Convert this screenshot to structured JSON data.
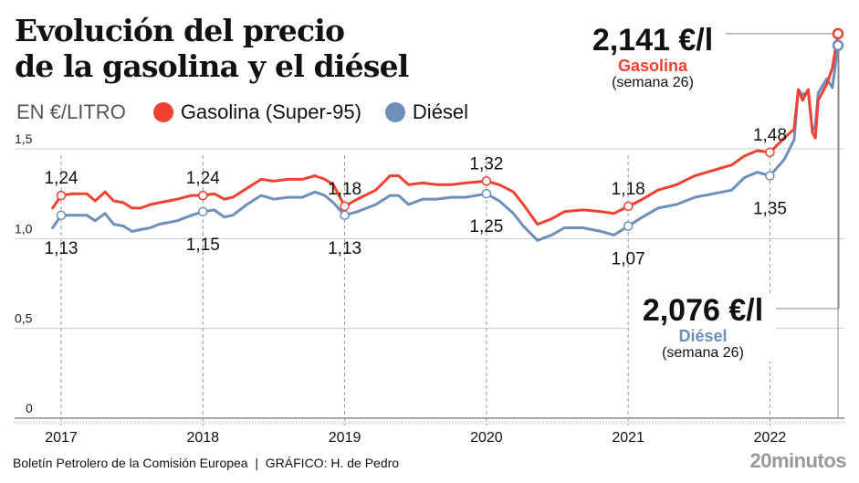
{
  "title_lines": [
    "Evolución del precio",
    "de la gasolina y el diésel"
  ],
  "unit_label": "EN €/LITRO",
  "legend": [
    {
      "name": "Gasolina (Super-95)",
      "color": "#f04131"
    },
    {
      "name": "Diésel",
      "color": "#6f8fbb"
    }
  ],
  "annotations": {
    "gasolina": {
      "value": "2,141 €/l",
      "series": "Gasolina",
      "period": "(semana 26)"
    },
    "diesel": {
      "value": "2,076 €/l",
      "series": "Diésel",
      "period": "(semana 26)"
    }
  },
  "footer": "Boletín Petrolero de la Comisión Europea  |  GRÁFICO: H. de Pedro",
  "brand": "20minutos",
  "chart_data": {
    "type": "line",
    "title": "Evolución del precio de la gasolina y el diésel",
    "ylabel": "EN €/LITRO",
    "xlabel": "",
    "ylim": [
      0,
      1.5
    ],
    "yticks": [
      {
        "value": 0,
        "label": "0"
      },
      {
        "value": 0.5,
        "label": "0,5"
      },
      {
        "value": 1.0,
        "label": "1,0"
      },
      {
        "value": 1.5,
        "label": "1,5"
      }
    ],
    "xlim": [
      2016.94,
      2022.48
    ],
    "xticks": [
      {
        "value": 2017,
        "label": "2017"
      },
      {
        "value": 2018,
        "label": "2018"
      },
      {
        "value": 2019,
        "label": "2019"
      },
      {
        "value": 2020,
        "label": "2020"
      },
      {
        "value": 2021,
        "label": "2021"
      },
      {
        "value": 2022,
        "label": "2022"
      }
    ],
    "grid": true,
    "legend_position": "top-left",
    "series": [
      {
        "name": "Gasolina (Super-95)",
        "color": "#f04131",
        "x": [
          2016.94,
          2017.0,
          2017.08,
          2017.18,
          2017.24,
          2017.31,
          2017.37,
          2017.44,
          2017.5,
          2017.56,
          2017.63,
          2017.69,
          2017.76,
          2017.82,
          2017.92,
          2018.0,
          2018.08,
          2018.15,
          2018.21,
          2018.31,
          2018.41,
          2018.5,
          2018.6,
          2018.7,
          2018.79,
          2018.86,
          2018.92,
          2019.0,
          2019.09,
          2019.22,
          2019.32,
          2019.38,
          2019.45,
          2019.55,
          2019.65,
          2019.75,
          2019.85,
          2020.0,
          2020.09,
          2020.19,
          2020.26,
          2020.36,
          2020.46,
          2020.55,
          2020.68,
          2020.81,
          2020.9,
          2021.0,
          2021.08,
          2021.21,
          2021.34,
          2021.47,
          2021.6,
          2021.73,
          2021.82,
          2021.91,
          2022.0,
          2022.1,
          2022.17,
          2022.2,
          2022.23,
          2022.27,
          2022.3,
          2022.32,
          2022.34,
          2022.4,
          2022.44,
          2022.48
        ],
        "values": [
          1.17,
          1.24,
          1.25,
          1.25,
          1.21,
          1.26,
          1.21,
          1.2,
          1.17,
          1.17,
          1.19,
          1.2,
          1.21,
          1.22,
          1.24,
          1.24,
          1.25,
          1.22,
          1.23,
          1.28,
          1.33,
          1.32,
          1.33,
          1.33,
          1.35,
          1.33,
          1.3,
          1.18,
          1.22,
          1.27,
          1.35,
          1.35,
          1.3,
          1.31,
          1.3,
          1.3,
          1.31,
          1.32,
          1.3,
          1.26,
          1.19,
          1.08,
          1.11,
          1.15,
          1.16,
          1.15,
          1.14,
          1.18,
          1.21,
          1.27,
          1.3,
          1.35,
          1.38,
          1.41,
          1.46,
          1.49,
          1.48,
          1.56,
          1.61,
          1.83,
          1.77,
          1.83,
          1.59,
          1.56,
          1.77,
          1.86,
          1.95,
          2.141
        ]
      },
      {
        "name": "Diésel",
        "color": "#6f8fbb",
        "x": [
          2016.94,
          2017.0,
          2017.08,
          2017.18,
          2017.24,
          2017.31,
          2017.37,
          2017.44,
          2017.5,
          2017.56,
          2017.63,
          2017.69,
          2017.76,
          2017.82,
          2017.92,
          2018.0,
          2018.08,
          2018.15,
          2018.21,
          2018.31,
          2018.41,
          2018.5,
          2018.6,
          2018.7,
          2018.79,
          2018.86,
          2018.92,
          2019.0,
          2019.09,
          2019.22,
          2019.32,
          2019.38,
          2019.45,
          2019.55,
          2019.65,
          2019.75,
          2019.85,
          2020.0,
          2020.09,
          2020.19,
          2020.26,
          2020.36,
          2020.46,
          2020.55,
          2020.68,
          2020.81,
          2020.9,
          2021.0,
          2021.08,
          2021.21,
          2021.34,
          2021.47,
          2021.6,
          2021.73,
          2021.82,
          2021.91,
          2022.0,
          2022.1,
          2022.17,
          2022.2,
          2022.23,
          2022.27,
          2022.3,
          2022.32,
          2022.34,
          2022.4,
          2022.44,
          2022.48
        ],
        "values": [
          1.06,
          1.13,
          1.13,
          1.13,
          1.1,
          1.14,
          1.08,
          1.07,
          1.04,
          1.05,
          1.06,
          1.08,
          1.09,
          1.1,
          1.13,
          1.15,
          1.16,
          1.12,
          1.13,
          1.19,
          1.24,
          1.22,
          1.23,
          1.23,
          1.26,
          1.24,
          1.2,
          1.13,
          1.15,
          1.19,
          1.24,
          1.24,
          1.19,
          1.22,
          1.22,
          1.23,
          1.23,
          1.25,
          1.21,
          1.14,
          1.07,
          0.99,
          1.02,
          1.06,
          1.06,
          1.04,
          1.02,
          1.07,
          1.11,
          1.17,
          1.19,
          1.23,
          1.25,
          1.27,
          1.34,
          1.37,
          1.35,
          1.44,
          1.55,
          1.83,
          1.8,
          1.82,
          1.6,
          1.63,
          1.81,
          1.89,
          1.84,
          2.076
        ]
      }
    ],
    "point_labels": [
      {
        "series": 0,
        "x": 2017.0,
        "value": 1.24,
        "label": "1,24",
        "position": "above"
      },
      {
        "series": 1,
        "x": 2017.0,
        "value": 1.13,
        "label": "1,13",
        "position": "below"
      },
      {
        "series": 0,
        "x": 2018.0,
        "value": 1.24,
        "label": "1,24",
        "position": "above"
      },
      {
        "series": 1,
        "x": 2018.0,
        "value": 1.15,
        "label": "1,15",
        "position": "below"
      },
      {
        "series": 0,
        "x": 2019.0,
        "value": 1.18,
        "label": "1,18",
        "position": "above"
      },
      {
        "series": 1,
        "x": 2019.0,
        "value": 1.13,
        "label": "1,13",
        "position": "below"
      },
      {
        "series": 0,
        "x": 2020.0,
        "value": 1.32,
        "label": "1,32",
        "position": "above"
      },
      {
        "series": 1,
        "x": 2020.0,
        "value": 1.25,
        "label": "1,25",
        "position": "below"
      },
      {
        "series": 0,
        "x": 2021.0,
        "value": 1.18,
        "label": "1,18",
        "position": "above"
      },
      {
        "series": 1,
        "x": 2021.0,
        "value": 1.07,
        "label": "1,07",
        "position": "below"
      },
      {
        "series": 0,
        "x": 2022.0,
        "value": 1.48,
        "label": "1,48",
        "position": "above"
      },
      {
        "series": 1,
        "x": 2022.0,
        "value": 1.35,
        "label": "1,35",
        "position": "below"
      },
      {
        "series": 0,
        "x": 2022.48,
        "value": 2.141,
        "label": "",
        "position": "none"
      },
      {
        "series": 1,
        "x": 2022.48,
        "value": 2.076,
        "label": "",
        "position": "none"
      }
    ]
  }
}
